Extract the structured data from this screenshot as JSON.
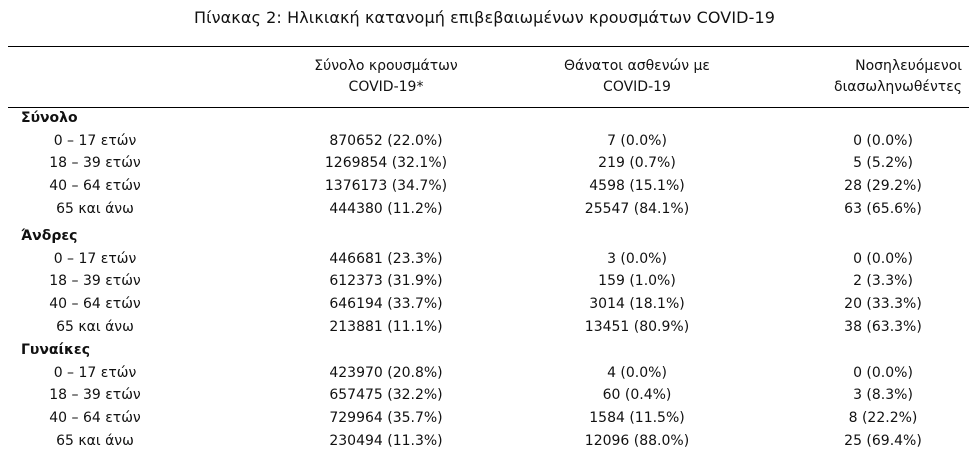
{
  "title": "Πίνακας 2: Ηλικιακή κατανομή επιβεβαιωμένων κρουσμάτων COVID-19",
  "columns": [
    {
      "line1": "Σύνολο κρουσμάτων",
      "line2": "COVID-19*"
    },
    {
      "line1": "Θάνατοι ασθενών με",
      "line2": "COVID-19"
    },
    {
      "line1": "Νοσηλευόμενοι",
      "line2": "διασωληνωθέντες"
    }
  ],
  "sections": [
    {
      "title": "Σύνολο",
      "rows": [
        {
          "label": "0 – 17 ετών",
          "cases": "870652 (22.0%)",
          "deaths": "7 (0.0%)",
          "intubated": "0 (0.0%)"
        },
        {
          "label": "18 – 39 ετών",
          "cases": "1269854 (32.1%)",
          "deaths": "219 (0.7%)",
          "intubated": "5 (5.2%)"
        },
        {
          "label": "40 – 64 ετών",
          "cases": "1376173 (34.7%)",
          "deaths": "4598 (15.1%)",
          "intubated": "28 (29.2%)"
        },
        {
          "label": "65 και άνω",
          "cases": "444380 (11.2%)",
          "deaths": "25547 (84.1%)",
          "intubated": "63 (65.6%)"
        }
      ]
    },
    {
      "title": "Άνδρες",
      "rows": [
        {
          "label": "0 – 17 ετών",
          "cases": "446681 (23.3%)",
          "deaths": "3 (0.0%)",
          "intubated": "0 (0.0%)"
        },
        {
          "label": "18 – 39 ετών",
          "cases": "612373 (31.9%)",
          "deaths": "159 (1.0%)",
          "intubated": "2 (3.3%)"
        },
        {
          "label": "40 – 64 ετών",
          "cases": "646194 (33.7%)",
          "deaths": "3014 (18.1%)",
          "intubated": "20 (33.3%)"
        },
        {
          "label": "65 και άνω",
          "cases": "213881 (11.1%)",
          "deaths": "13451 (80.9%)",
          "intubated": "38 (63.3%)"
        }
      ]
    },
    {
      "title": "Γυναίκες",
      "rows": [
        {
          "label": "0 – 17 ετών",
          "cases": "423970 (20.8%)",
          "deaths": "4 (0.0%)",
          "intubated": "0 (0.0%)"
        },
        {
          "label": "18 – 39 ετών",
          "cases": "657475 (32.2%)",
          "deaths": "60 (0.4%)",
          "intubated": "3 (8.3%)"
        },
        {
          "label": "40 – 64 ετών",
          "cases": "729964 (35.7%)",
          "deaths": "1584 (11.5%)",
          "intubated": "8 (22.2%)"
        },
        {
          "label": "65 και άνω",
          "cases": "230494 (11.3%)",
          "deaths": "12096 (88.0%)",
          "intubated": "25 (69.4%)"
        }
      ]
    }
  ]
}
